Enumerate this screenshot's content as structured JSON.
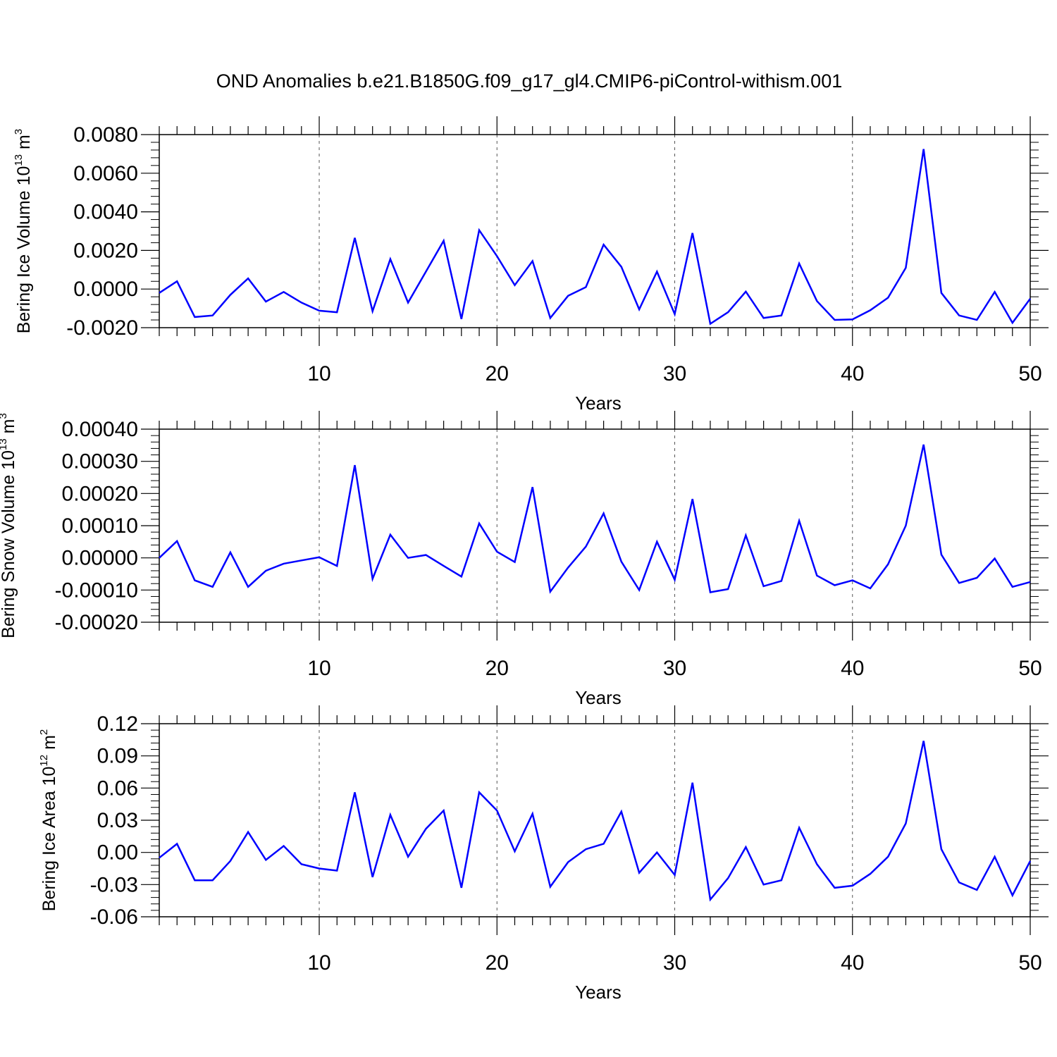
{
  "title": "OND Anomalies b.e21.B1850G.f09_g17_gl4.CMIP6-piControl-withism.001",
  "colors": {
    "line": "#0000ff",
    "axis": "#000000",
    "grid": "#555555"
  },
  "chart_data": [
    {
      "type": "line",
      "xlabel": "Years",
      "ylabel": {
        "text": "Bering Ice Volume 10",
        "exp": "13",
        "unit": " m",
        "unit_exp": "3"
      },
      "xlim": [
        1,
        50
      ],
      "ylim": [
        -0.002,
        0.008
      ],
      "xticks": [
        10,
        20,
        30,
        40,
        50
      ],
      "yticks": [
        -0.002,
        0,
        0.002,
        0.004,
        0.006,
        0.008
      ],
      "ytick_labels": [
        "-0.0020",
        "0.0000",
        "0.0020",
        "0.0040",
        "0.0060",
        "0.0080"
      ],
      "grid": "x-dashed",
      "x": [
        1,
        2,
        3,
        4,
        5,
        6,
        7,
        8,
        9,
        10,
        11,
        12,
        13,
        14,
        15,
        16,
        17,
        18,
        19,
        20,
        21,
        22,
        23,
        24,
        25,
        26,
        27,
        28,
        29,
        30,
        31,
        32,
        33,
        34,
        35,
        36,
        37,
        38,
        39,
        40,
        41,
        42,
        43,
        44,
        45,
        46,
        47,
        48,
        49,
        50
      ],
      "values": [
        -0.0002,
        0.0004,
        -0.00145,
        -0.00137,
        -0.0003,
        0.00055,
        -0.00065,
        -0.00015,
        -0.0007,
        -0.00112,
        -0.0012,
        0.00265,
        -0.00115,
        0.00155,
        -0.0007,
        0.0009,
        0.0025,
        -0.00155,
        0.00305,
        0.0017,
        0.0002,
        0.00145,
        -0.0015,
        -0.00035,
        0.0001,
        0.0023,
        0.00115,
        -0.00105,
        0.0009,
        -0.0013,
        0.0029,
        -0.0018,
        -0.0012,
        -0.00013,
        -0.0015,
        -0.00137,
        0.00132,
        -0.00062,
        -0.0016,
        -0.00157,
        -0.0011,
        -0.00045,
        0.0011,
        0.00725,
        -0.0002,
        -0.00137,
        -0.0016,
        -0.00015,
        -0.00175,
        -0.0005
      ]
    },
    {
      "type": "line",
      "xlabel": "Years",
      "ylabel": {
        "text": "Bering Snow Volume 10",
        "exp": "13",
        "unit": " m",
        "unit_exp": "3"
      },
      "xlim": [
        1,
        50
      ],
      "ylim": [
        -0.0002,
        0.0004
      ],
      "xticks": [
        10,
        20,
        30,
        40,
        50
      ],
      "yticks": [
        -0.0002,
        -0.0001,
        0,
        0.0001,
        0.0002,
        0.0003,
        0.0004
      ],
      "ytick_labels": [
        "-0.00020",
        "-0.00010",
        "0.00000",
        "0.00010",
        "0.00020",
        "0.00030",
        "0.00040"
      ],
      "grid": "x-dashed",
      "x": [
        1,
        2,
        3,
        4,
        5,
        6,
        7,
        8,
        9,
        10,
        11,
        12,
        13,
        14,
        15,
        16,
        17,
        18,
        19,
        20,
        21,
        22,
        23,
        24,
        25,
        26,
        27,
        28,
        29,
        30,
        31,
        32,
        33,
        34,
        35,
        36,
        37,
        38,
        39,
        40,
        41,
        42,
        43,
        44,
        45,
        46,
        47,
        48,
        49,
        50
      ],
      "values": [
        0,
        5.2e-05,
        -7e-05,
        -9e-05,
        1.7e-05,
        -9e-05,
        -4e-05,
        -1.8e-05,
        -8e-06,
        2e-06,
        -2.5e-05,
        0.000288,
        -6.5e-05,
        7.2e-05,
        0,
        9e-06,
        -2.5e-05,
        -5.8e-05,
        0.000107,
        1.9e-05,
        -1.3e-05,
        0.00022,
        -0.000105,
        -3e-05,
        3.5e-05,
        0.000138,
        -1.2e-05,
        -0.0001,
        5e-05,
        -6.8e-05,
        0.000183,
        -0.000107,
        -9.7e-05,
        7e-05,
        -8.8e-05,
        -7.2e-05,
        0.000115,
        -5.5e-05,
        -8.5e-05,
        -7e-05,
        -9.5e-05,
        -2e-05,
        0.0001,
        0.000352,
        1e-05,
        -7.8e-05,
        -6.2e-05,
        -2e-06,
        -9e-05,
        -7.5e-05
      ]
    },
    {
      "type": "line",
      "xlabel": "Years",
      "ylabel": {
        "text": "Bering Ice Area 10",
        "exp": "12",
        "unit": " m",
        "unit_exp": "2"
      },
      "xlim": [
        1,
        50
      ],
      "ylim": [
        -0.06,
        0.12
      ],
      "xticks": [
        10,
        20,
        30,
        40,
        50
      ],
      "yticks": [
        -0.06,
        -0.03,
        0,
        0.03,
        0.06,
        0.09,
        0.12
      ],
      "ytick_labels": [
        "-0.06",
        "-0.03",
        "0.00",
        "0.03",
        "0.06",
        "0.09",
        "0.12"
      ],
      "grid": "x-dashed",
      "x": [
        1,
        2,
        3,
        4,
        5,
        6,
        7,
        8,
        9,
        10,
        11,
        12,
        13,
        14,
        15,
        16,
        17,
        18,
        19,
        20,
        21,
        22,
        23,
        24,
        25,
        26,
        27,
        28,
        29,
        30,
        31,
        32,
        33,
        34,
        35,
        36,
        37,
        38,
        39,
        40,
        41,
        42,
        43,
        44,
        45,
        46,
        47,
        48,
        49,
        50
      ],
      "values": [
        -0.005,
        0.008,
        -0.026,
        -0.026,
        -0.008,
        0.019,
        -0.007,
        0.006,
        -0.011,
        -0.015,
        -0.017,
        0.056,
        -0.023,
        0.035,
        -0.004,
        0.022,
        0.039,
        -0.033,
        0.056,
        0.039,
        0.001,
        0.036,
        -0.032,
        -0.009,
        0.003,
        0.008,
        0.038,
        -0.019,
        0,
        -0.021,
        0.065,
        -0.044,
        -0.024,
        0.005,
        -0.03,
        -0.026,
        0.023,
        -0.011,
        -0.033,
        -0.031,
        -0.02,
        -0.004,
        0.027,
        0.104,
        0.003,
        -0.028,
        -0.035,
        -0.004,
        -0.04,
        -0.008
      ]
    }
  ]
}
